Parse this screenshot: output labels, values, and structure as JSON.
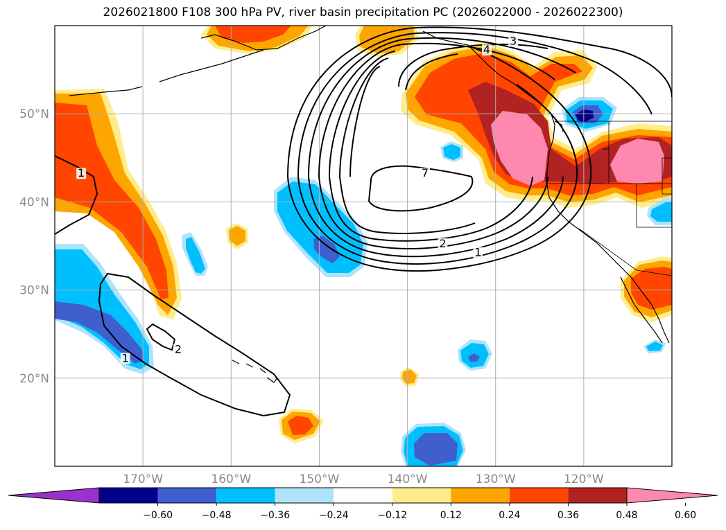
{
  "title": "2026021800 F108 300 hPa PV, river basin precipitation PC (2026022000 - 2026022300)",
  "map": {
    "lon_range": [
      -180,
      -110
    ],
    "lat_range": [
      10,
      60
    ],
    "lon_ticks": [
      {
        "lon": -170,
        "label": "170°W"
      },
      {
        "lon": -160,
        "label": "160°W"
      },
      {
        "lon": -150,
        "label": "150°W"
      },
      {
        "lon": -140,
        "label": "140°W"
      },
      {
        "lon": -130,
        "label": "130°W"
      },
      {
        "lon": -120,
        "label": "120°W"
      }
    ],
    "lat_ticks": [
      {
        "lat": 20,
        "label": "20°N"
      },
      {
        "lat": 30,
        "label": "30°N"
      },
      {
        "lat": 40,
        "label": "40°N"
      },
      {
        "lat": 50,
        "label": "50°N"
      }
    ],
    "grid": true,
    "contour_labels": [
      {
        "text": "1",
        "lon": -177,
        "lat": 43
      },
      {
        "text": "1",
        "lon": -172,
        "lat": 22
      },
      {
        "text": "2",
        "lon": -166,
        "lat": 23
      },
      {
        "text": "7",
        "lon": -138,
        "lat": 43
      },
      {
        "text": "2",
        "lon": -136,
        "lat": 35
      },
      {
        "text": "1",
        "lon": -132,
        "lat": 34
      },
      {
        "text": "4",
        "lon": -131,
        "lat": 57
      },
      {
        "text": "3",
        "lon": -128,
        "lat": 58
      }
    ]
  },
  "colorbar": {
    "colors": [
      "#9932cc",
      "#00008b",
      "#3f5fcf",
      "#00bfff",
      "#aee3fb",
      "#ffffff",
      "#ffec8b",
      "#ffa500",
      "#ff4500",
      "#b22222",
      "#ff88b0"
    ],
    "tick_labels": [
      "−0.60",
      "−0.48",
      "−0.36",
      "−0.24",
      "−0.12",
      "0.12",
      "0.24",
      "0.36",
      "0.48",
      "0.60"
    ]
  }
}
